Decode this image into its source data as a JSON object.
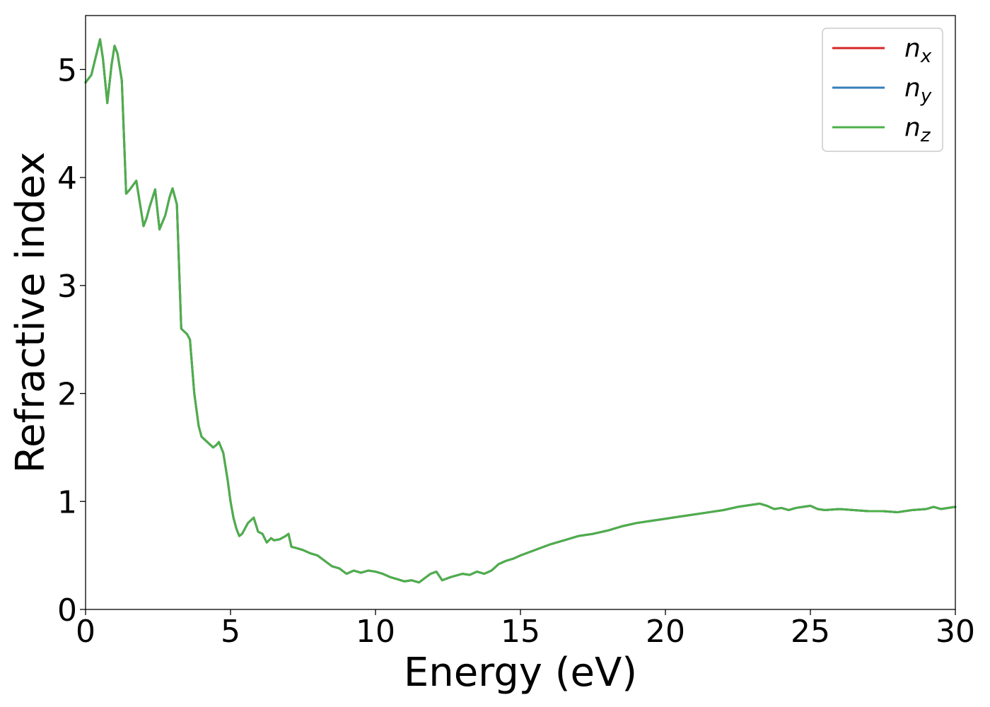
{
  "chart_data": {
    "type": "line",
    "title": "",
    "xlabel": "Energy (eV)",
    "ylabel": "Refractive index",
    "xlim": [
      0,
      30
    ],
    "ylim": [
      0,
      5.5
    ],
    "xticks": [
      0,
      5,
      10,
      15,
      20,
      25,
      30
    ],
    "xtick_labels": [
      "0",
      "5",
      "10",
      "15",
      "20",
      "25",
      "30"
    ],
    "yticks": [
      0,
      1,
      2,
      3,
      4,
      5
    ],
    "ytick_labels": [
      "0",
      "1",
      "2",
      "3",
      "4",
      "5"
    ],
    "grid": false,
    "legend": {
      "placement": "top-right",
      "entries": [
        {
          "base": "n",
          "sub": "x"
        },
        {
          "base": "n",
          "sub": "y"
        },
        {
          "base": "n",
          "sub": "z"
        }
      ]
    },
    "x": [
      0,
      0.2,
      0.5,
      0.6,
      0.75,
      0.9,
      1.0,
      1.1,
      1.25,
      1.4,
      1.5,
      1.75,
      2.0,
      2.1,
      2.2,
      2.4,
      2.55,
      2.75,
      2.9,
      3.0,
      3.15,
      3.3,
      3.5,
      3.6,
      3.75,
      3.9,
      4.0,
      4.2,
      4.4,
      4.5,
      4.6,
      4.75,
      4.9,
      5.0,
      5.1,
      5.2,
      5.3,
      5.4,
      5.5,
      5.6,
      5.8,
      5.95,
      6.1,
      6.25,
      6.4,
      6.5,
      6.7,
      6.9,
      7.0,
      7.1,
      7.25,
      7.5,
      7.75,
      8.0,
      8.25,
      8.5,
      8.75,
      9.0,
      9.25,
      9.5,
      9.75,
      10.0,
      10.25,
      10.5,
      10.75,
      11.0,
      11.25,
      11.5,
      11.75,
      11.9,
      12.1,
      12.3,
      12.6,
      13.0,
      13.25,
      13.5,
      13.75,
      14.0,
      14.25,
      14.5,
      14.75,
      15.0,
      15.5,
      16.0,
      16.5,
      17.0,
      17.5,
      18.0,
      18.5,
      19.0,
      19.5,
      20.0,
      20.5,
      21.0,
      21.5,
      22.0,
      22.5,
      23.0,
      23.25,
      23.5,
      23.75,
      24.0,
      24.25,
      24.5,
      24.75,
      25.0,
      25.25,
      25.5,
      26.0,
      26.5,
      27.0,
      27.5,
      28.0,
      28.5,
      29.0,
      29.25,
      29.5,
      30.0
    ],
    "series": [
      {
        "name": "n_x",
        "color": "#d62728",
        "values": [
          4.88,
          4.95,
          5.28,
          5.1,
          4.69,
          5.05,
          5.22,
          5.15,
          4.9,
          3.85,
          3.88,
          3.97,
          3.55,
          3.62,
          3.72,
          3.89,
          3.52,
          3.65,
          3.82,
          3.9,
          3.75,
          2.6,
          2.55,
          2.5,
          2.0,
          1.7,
          1.6,
          1.55,
          1.5,
          1.52,
          1.55,
          1.45,
          1.2,
          1.0,
          0.85,
          0.75,
          0.68,
          0.7,
          0.75,
          0.8,
          0.85,
          0.72,
          0.7,
          0.62,
          0.66,
          0.64,
          0.65,
          0.68,
          0.7,
          0.58,
          0.57,
          0.55,
          0.52,
          0.5,
          0.45,
          0.4,
          0.38,
          0.33,
          0.36,
          0.34,
          0.36,
          0.35,
          0.33,
          0.3,
          0.28,
          0.26,
          0.27,
          0.25,
          0.3,
          0.33,
          0.35,
          0.27,
          0.3,
          0.33,
          0.32,
          0.35,
          0.33,
          0.36,
          0.42,
          0.45,
          0.47,
          0.5,
          0.55,
          0.6,
          0.64,
          0.68,
          0.7,
          0.73,
          0.77,
          0.8,
          0.82,
          0.84,
          0.86,
          0.88,
          0.9,
          0.92,
          0.95,
          0.97,
          0.98,
          0.96,
          0.93,
          0.94,
          0.92,
          0.94,
          0.95,
          0.96,
          0.93,
          0.92,
          0.93,
          0.92,
          0.91,
          0.91,
          0.9,
          0.92,
          0.93,
          0.95,
          0.93,
          0.95
        ]
      },
      {
        "name": "n_y",
        "color": "#377eb8",
        "values": [
          4.88,
          4.95,
          5.28,
          5.1,
          4.69,
          5.05,
          5.22,
          5.15,
          4.9,
          3.85,
          3.88,
          3.97,
          3.55,
          3.62,
          3.72,
          3.89,
          3.52,
          3.65,
          3.82,
          3.9,
          3.75,
          2.6,
          2.55,
          2.5,
          2.0,
          1.7,
          1.6,
          1.55,
          1.5,
          1.52,
          1.55,
          1.45,
          1.2,
          1.0,
          0.85,
          0.75,
          0.68,
          0.7,
          0.75,
          0.8,
          0.85,
          0.72,
          0.7,
          0.62,
          0.66,
          0.64,
          0.65,
          0.68,
          0.7,
          0.58,
          0.57,
          0.55,
          0.52,
          0.5,
          0.45,
          0.4,
          0.38,
          0.33,
          0.36,
          0.34,
          0.36,
          0.35,
          0.33,
          0.3,
          0.28,
          0.26,
          0.27,
          0.25,
          0.3,
          0.33,
          0.35,
          0.27,
          0.3,
          0.33,
          0.32,
          0.35,
          0.33,
          0.36,
          0.42,
          0.45,
          0.47,
          0.5,
          0.55,
          0.6,
          0.64,
          0.68,
          0.7,
          0.73,
          0.77,
          0.8,
          0.82,
          0.84,
          0.86,
          0.88,
          0.9,
          0.92,
          0.95,
          0.97,
          0.98,
          0.96,
          0.93,
          0.94,
          0.92,
          0.94,
          0.95,
          0.96,
          0.93,
          0.92,
          0.93,
          0.92,
          0.91,
          0.91,
          0.9,
          0.92,
          0.93,
          0.95,
          0.93,
          0.95
        ]
      },
      {
        "name": "n_z",
        "color": "#4daf4a",
        "values": [
          4.88,
          4.95,
          5.28,
          5.1,
          4.69,
          5.05,
          5.22,
          5.15,
          4.9,
          3.85,
          3.88,
          3.97,
          3.55,
          3.62,
          3.72,
          3.89,
          3.52,
          3.65,
          3.82,
          3.9,
          3.75,
          2.6,
          2.55,
          2.5,
          2.0,
          1.7,
          1.6,
          1.55,
          1.5,
          1.52,
          1.55,
          1.45,
          1.2,
          1.0,
          0.85,
          0.75,
          0.68,
          0.7,
          0.75,
          0.8,
          0.85,
          0.72,
          0.7,
          0.62,
          0.66,
          0.64,
          0.65,
          0.68,
          0.7,
          0.58,
          0.57,
          0.55,
          0.52,
          0.5,
          0.45,
          0.4,
          0.38,
          0.33,
          0.36,
          0.34,
          0.36,
          0.35,
          0.33,
          0.3,
          0.28,
          0.26,
          0.27,
          0.25,
          0.3,
          0.33,
          0.35,
          0.27,
          0.3,
          0.33,
          0.32,
          0.35,
          0.33,
          0.36,
          0.42,
          0.45,
          0.47,
          0.5,
          0.55,
          0.6,
          0.64,
          0.68,
          0.7,
          0.73,
          0.77,
          0.8,
          0.82,
          0.84,
          0.86,
          0.88,
          0.9,
          0.92,
          0.95,
          0.97,
          0.98,
          0.96,
          0.93,
          0.94,
          0.92,
          0.94,
          0.95,
          0.96,
          0.93,
          0.92,
          0.93,
          0.92,
          0.91,
          0.91,
          0.9,
          0.92,
          0.93,
          0.95,
          0.93,
          0.95
        ]
      }
    ]
  }
}
